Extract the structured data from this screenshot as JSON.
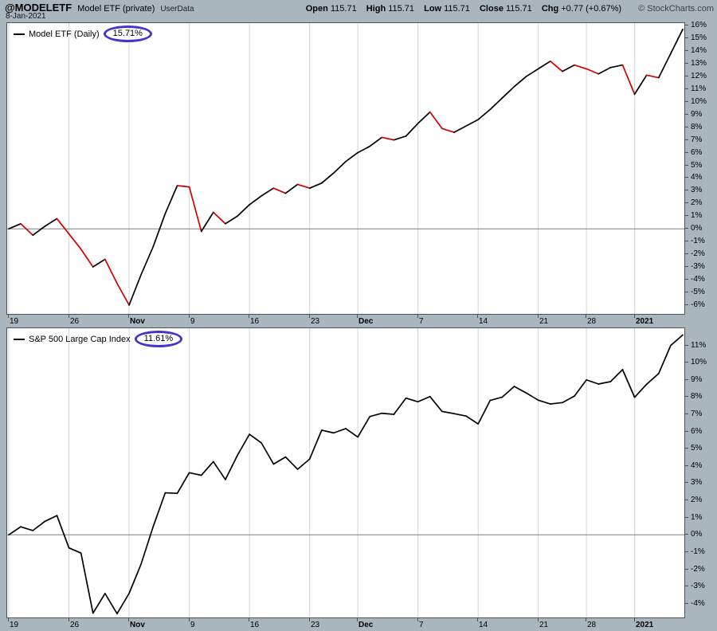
{
  "header": {
    "symbol": "@MODELETF",
    "title": "Model ETF (private)",
    "source": "UserData",
    "date": "8-Jan-2021",
    "copyright": "© StockCharts.com",
    "quote_items": [
      {
        "label": "Open",
        "value": "115.71"
      },
      {
        "label": "High",
        "value": "115.71"
      },
      {
        "label": "Low",
        "value": "115.71"
      },
      {
        "label": "Close",
        "value": "115.71"
      },
      {
        "label": "Chg",
        "value": "+0.77 (+0.67%)"
      }
    ]
  },
  "chart_data": [
    {
      "type": "line",
      "title": "Model ETF (Daily)",
      "legend_name": "Model ETF (Daily)",
      "last_value_label": "15.71%",
      "ylim": [
        -6.7,
        16.2
      ],
      "zero_line": true,
      "line_color": "#000000",
      "down_color": "#d40000",
      "grid_color": "#ccd7de",
      "zero_line_color": "#808080",
      "annotation_color": "#4433cc",
      "x": [
        "2020-10-19",
        "2020-10-20",
        "2020-10-21",
        "2020-10-22",
        "2020-10-23",
        "2020-10-26",
        "2020-10-27",
        "2020-10-28",
        "2020-10-29",
        "2020-10-30",
        "2020-11-02",
        "2020-11-03",
        "2020-11-04",
        "2020-11-05",
        "2020-11-06",
        "2020-11-09",
        "2020-11-10",
        "2020-11-11",
        "2020-11-12",
        "2020-11-13",
        "2020-11-16",
        "2020-11-17",
        "2020-11-18",
        "2020-11-19",
        "2020-11-20",
        "2020-11-23",
        "2020-11-24",
        "2020-11-25",
        "2020-11-27",
        "2020-11-30",
        "2020-12-01",
        "2020-12-02",
        "2020-12-03",
        "2020-12-04",
        "2020-12-07",
        "2020-12-08",
        "2020-12-09",
        "2020-12-10",
        "2020-12-11",
        "2020-12-14",
        "2020-12-15",
        "2020-12-16",
        "2020-12-17",
        "2020-12-18",
        "2020-12-21",
        "2020-12-22",
        "2020-12-23",
        "2020-12-24",
        "2020-12-28",
        "2020-12-29",
        "2020-12-30",
        "2020-12-31",
        "2021-01-04",
        "2021-01-05",
        "2021-01-06",
        "2021-01-07",
        "2021-01-08"
      ],
      "values": [
        0.0,
        0.4,
        -0.5,
        0.2,
        0.8,
        -0.4,
        -1.6,
        -3.0,
        -2.4,
        -4.3,
        -6.0,
        -3.6,
        -1.4,
        1.2,
        3.4,
        3.3,
        -0.2,
        1.3,
        0.4,
        1.0,
        1.9,
        2.6,
        3.2,
        2.8,
        3.5,
        3.2,
        3.6,
        4.4,
        5.3,
        6.0,
        6.5,
        7.2,
        7.0,
        7.3,
        8.3,
        9.2,
        7.9,
        7.6,
        8.1,
        8.6,
        9.4,
        10.3,
        11.2,
        12.0,
        12.6,
        13.2,
        12.4,
        12.9,
        12.6,
        12.2,
        12.7,
        12.9,
        10.6,
        12.1,
        11.9,
        13.8,
        15.71
      ],
      "x_ticks": [
        {
          "i": 0,
          "label": "19"
        },
        {
          "i": 5,
          "label": "26"
        },
        {
          "i": 10,
          "label": "Nov",
          "bold": true
        },
        {
          "i": 15,
          "label": "9"
        },
        {
          "i": 20,
          "label": "16"
        },
        {
          "i": 25,
          "label": "23"
        },
        {
          "i": 29,
          "label": "Dec",
          "bold": true
        },
        {
          "i": 34,
          "label": "7"
        },
        {
          "i": 39,
          "label": "14"
        },
        {
          "i": 44,
          "label": "21"
        },
        {
          "i": 48,
          "label": "28"
        },
        {
          "i": 52,
          "label": "2021",
          "bold": true
        }
      ],
      "y_tick_labels": [
        "16%",
        "15%",
        "14%",
        "13%",
        "12%",
        "11%",
        "10%",
        "9%",
        "8%",
        "7%",
        "6%",
        "5%",
        "4%",
        "3%",
        "2%",
        "1%",
        "0%",
        "-1%",
        "-2%",
        "-3%",
        "-4%",
        "-5%",
        "-6%"
      ]
    },
    {
      "type": "line",
      "title": "S&P 500 Large Cap Index",
      "legend_name": "S&P 500 Large Cap Index",
      "last_value_label": "11.61%",
      "ylim": [
        -4.8,
        12.0
      ],
      "zero_line": true,
      "line_color": "#000000",
      "down_color": null,
      "grid_color": "#ccd7de",
      "zero_line_color": "#808080",
      "annotation_color": "#4433cc",
      "x": [
        "2020-10-19",
        "2020-10-20",
        "2020-10-21",
        "2020-10-22",
        "2020-10-23",
        "2020-10-26",
        "2020-10-27",
        "2020-10-28",
        "2020-10-29",
        "2020-10-30",
        "2020-11-02",
        "2020-11-03",
        "2020-11-04",
        "2020-11-05",
        "2020-11-06",
        "2020-11-09",
        "2020-11-10",
        "2020-11-11",
        "2020-11-12",
        "2020-11-13",
        "2020-11-16",
        "2020-11-17",
        "2020-11-18",
        "2020-11-19",
        "2020-11-20",
        "2020-11-23",
        "2020-11-24",
        "2020-11-25",
        "2020-11-27",
        "2020-11-30",
        "2020-12-01",
        "2020-12-02",
        "2020-12-03",
        "2020-12-04",
        "2020-12-07",
        "2020-12-08",
        "2020-12-09",
        "2020-12-10",
        "2020-12-11",
        "2020-12-14",
        "2020-12-15",
        "2020-12-16",
        "2020-12-17",
        "2020-12-18",
        "2020-12-21",
        "2020-12-22",
        "2020-12-23",
        "2020-12-24",
        "2020-12-28",
        "2020-12-29",
        "2020-12-30",
        "2020-12-31",
        "2021-01-04",
        "2021-01-05",
        "2021-01-06",
        "2021-01-07",
        "2021-01-08"
      ],
      "values": [
        0.0,
        0.47,
        0.25,
        0.78,
        1.12,
        -0.76,
        -1.06,
        -4.55,
        -3.41,
        -4.58,
        -3.4,
        -1.69,
        0.48,
        2.44,
        2.41,
        3.61,
        3.46,
        4.25,
        3.21,
        4.62,
        5.84,
        5.33,
        4.11,
        4.52,
        3.81,
        4.4,
        6.08,
        5.92,
        6.17,
        5.68,
        6.87,
        7.06,
        7.0,
        7.94,
        7.73,
        8.03,
        7.17,
        7.04,
        6.9,
        6.44,
        7.81,
        8.0,
        8.62,
        8.24,
        7.82,
        7.6,
        7.68,
        8.06,
        9.0,
        8.76,
        8.9,
        9.6,
        7.99,
        8.75,
        9.37,
        11.0,
        11.61
      ],
      "x_ticks": [
        {
          "i": 0,
          "label": "19"
        },
        {
          "i": 5,
          "label": "26"
        },
        {
          "i": 10,
          "label": "Nov",
          "bold": true
        },
        {
          "i": 15,
          "label": "9"
        },
        {
          "i": 20,
          "label": "16"
        },
        {
          "i": 25,
          "label": "23"
        },
        {
          "i": 29,
          "label": "Dec",
          "bold": true
        },
        {
          "i": 34,
          "label": "7"
        },
        {
          "i": 39,
          "label": "14"
        },
        {
          "i": 44,
          "label": "21"
        },
        {
          "i": 48,
          "label": "28"
        },
        {
          "i": 52,
          "label": "2021",
          "bold": true
        }
      ],
      "y_tick_labels": [
        "11%",
        "10%",
        "9%",
        "8%",
        "7%",
        "6%",
        "5%",
        "4%",
        "3%",
        "2%",
        "1%",
        "0%",
        "-1%",
        "-2%",
        "-3%",
        "-4%"
      ]
    }
  ]
}
